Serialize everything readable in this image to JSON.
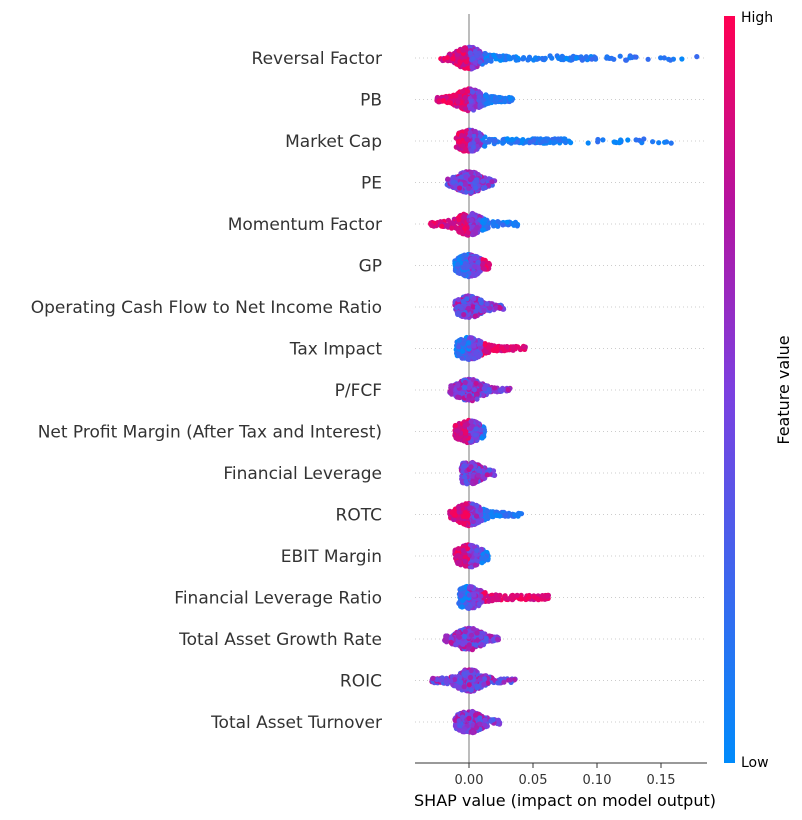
{
  "chart_data": {
    "type": "scatter",
    "subtype": "shap-beeswarm",
    "xlabel": "SHAP value (impact on model output)",
    "xlim": [
      -0.042,
      0.185
    ],
    "xticks": [
      0.0,
      0.05,
      0.1,
      0.15
    ],
    "xtick_labels": [
      "0.00",
      "0.05",
      "0.10",
      "0.15"
    ],
    "colorbar": {
      "title": "Feature value",
      "high_label": "High",
      "low_label": "Low",
      "low_color": "#008bfb",
      "high_color": "#ff0052"
    },
    "features": [
      {
        "name": "Reversal Factor",
        "min": -0.022,
        "max": 0.178,
        "high_side": "left",
        "dense_to": 0.1
      },
      {
        "name": "PB",
        "min": -0.025,
        "max": 0.034,
        "high_side": "left",
        "dense_to": 0.022
      },
      {
        "name": "Market Cap",
        "min": -0.01,
        "max": 0.158,
        "high_side": "left",
        "dense_to": 0.075
      },
      {
        "name": "PE",
        "min": -0.017,
        "max": 0.02,
        "high_side": "mixed",
        "dense_to": 0.012
      },
      {
        "name": "Momentum Factor",
        "min": -0.03,
        "max": 0.038,
        "high_side": "left",
        "dense_to": 0.022
      },
      {
        "name": "GP",
        "min": -0.011,
        "max": 0.016,
        "high_side": "right",
        "dense_to": 0.012
      },
      {
        "name": "Operating Cash Flow to Net Income Ratio",
        "min": -0.011,
        "max": 0.027,
        "high_side": "mixed",
        "dense_to": 0.016
      },
      {
        "name": "Tax Impact",
        "min": -0.01,
        "max": 0.044,
        "high_side": "right",
        "dense_to": 0.03
      },
      {
        "name": "P/FCF",
        "min": -0.015,
        "max": 0.032,
        "high_side": "mixed",
        "dense_to": 0.018
      },
      {
        "name": "Net Profit Margin (After Tax and Interest)",
        "min": -0.011,
        "max": 0.012,
        "high_side": "left",
        "dense_to": 0.01
      },
      {
        "name": "Financial Leverage",
        "min": -0.006,
        "max": 0.02,
        "high_side": "mixed",
        "dense_to": 0.012
      },
      {
        "name": "ROTC",
        "min": -0.015,
        "max": 0.041,
        "high_side": "left",
        "dense_to": 0.024
      },
      {
        "name": "EBIT Margin",
        "min": -0.011,
        "max": 0.015,
        "high_side": "left",
        "dense_to": 0.01
      },
      {
        "name": "Financial Leverage Ratio",
        "min": -0.008,
        "max": 0.062,
        "high_side": "right",
        "dense_to": 0.058
      },
      {
        "name": "Total Asset Growth Rate",
        "min": -0.019,
        "max": 0.023,
        "high_side": "mixed",
        "dense_to": 0.016
      },
      {
        "name": "ROIC",
        "min": -0.029,
        "max": 0.036,
        "high_side": "mixed",
        "dense_to": 0.022
      },
      {
        "name": "Total Asset Turnover",
        "min": -0.011,
        "max": 0.024,
        "high_side": "mixed",
        "dense_to": 0.014
      }
    ]
  }
}
